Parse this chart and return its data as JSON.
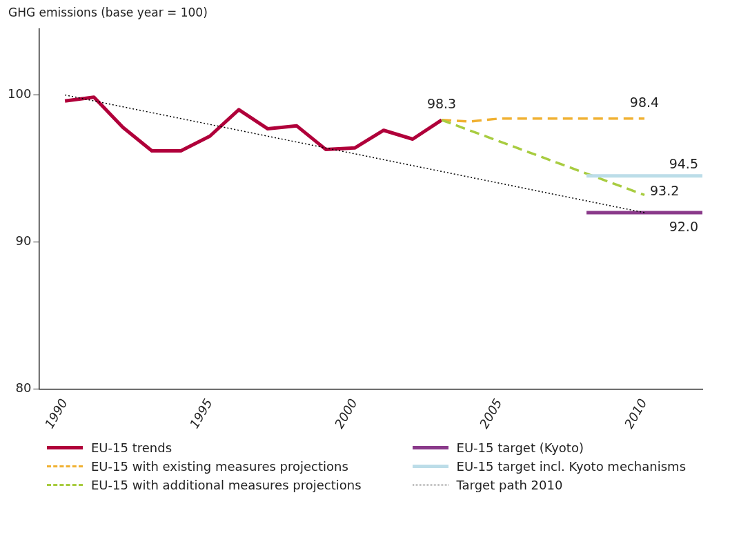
{
  "chart_data": {
    "type": "line",
    "ylabel": "GHG emissions (base year = 100)",
    "xlim": [
      1989.1,
      2012
    ],
    "xticks": [
      1990,
      1995,
      2000,
      2005,
      2010
    ],
    "ylim": [
      80,
      104.5
    ],
    "yticks": [
      80,
      90,
      100
    ],
    "grid": false,
    "legend": "bottom",
    "marker": "none",
    "series": [
      {
        "name": "EU-15 trends",
        "color": "#b0003a",
        "line_style": "solid",
        "x": [
          1990,
          1991,
          1992,
          1993,
          1994,
          1995,
          1996,
          1997,
          1998,
          1999,
          2000,
          2001,
          2002,
          2003
        ],
        "values": [
          99.6,
          99.85,
          97.8,
          96.2,
          96.2,
          97.2,
          99.0,
          97.7,
          97.9,
          96.3,
          96.4,
          97.6,
          97.0,
          98.3
        ]
      },
      {
        "name": "EU-15 with existing measures projections",
        "color": "#f0b030",
        "line_style": "dashed",
        "x": [
          2003,
          2004,
          2005,
          2010
        ],
        "values": [
          98.3,
          98.2,
          98.4,
          98.4
        ]
      },
      {
        "name": "EU-15 with additional measures projections",
        "color": "#a8cc40",
        "line_style": "dashed",
        "x": [
          2003,
          2010
        ],
        "values": [
          98.3,
          93.2
        ]
      },
      {
        "name": "EU-15 target (Kyoto)",
        "color": "#8a3a8a",
        "line_style": "solid",
        "x": [
          2008,
          2012
        ],
        "values": [
          92.0,
          92.0
        ]
      },
      {
        "name": "EU-15 target incl. Kyoto mechanisms",
        "color": "#bcdde8",
        "line_style": "solid",
        "x": [
          2008,
          2012
        ],
        "values": [
          94.5,
          94.5
        ]
      },
      {
        "name": "Target path 2010",
        "color": "#000000",
        "line_style": "dotted",
        "x": [
          1990,
          2010
        ],
        "values": [
          100,
          92
        ]
      }
    ],
    "annotations": [
      {
        "text": "98.3",
        "x": 2003,
        "y": 98.3
      },
      {
        "text": "98.4",
        "x": 2010,
        "y": 98.4
      },
      {
        "text": "94.5",
        "x": 2012,
        "y": 94.5
      },
      {
        "text": "93.2",
        "x": 2010,
        "y": 93.2
      },
      {
        "text": "92.0",
        "x": 2012,
        "y": 92.0
      }
    ]
  }
}
